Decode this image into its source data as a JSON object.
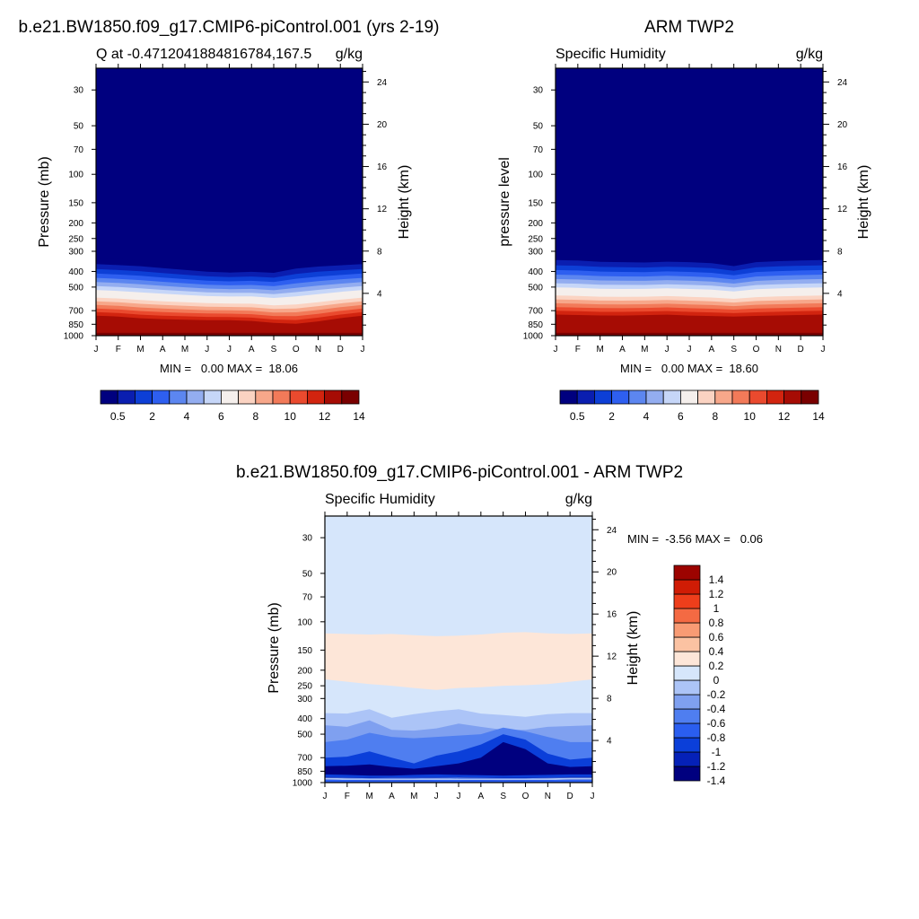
{
  "panels": [
    {
      "title": "b.e21.BW1850.f09_g17.CMIP6-piControl.001 (yrs 2-19)",
      "subtitle_left": "Q at -0.4712041884816784,167.5",
      "subtitle_right": "g/kg",
      "ylabel": "Pressure (mb)",
      "ylabel_right": "Height (km)",
      "minmax": "MIN =   0.00 MAX =  18.06"
    },
    {
      "title": "ARM TWP2",
      "subtitle_left": "Specific Humidity",
      "subtitle_right": "g/kg",
      "ylabel": "pressure level",
      "ylabel_right": "Height (km)",
      "minmax": "MIN =   0.00 MAX =  18.60"
    },
    {
      "title": "b.e21.BW1850.f09_g17.CMIP6-piControl.001 - ARM TWP2",
      "subtitle_left": "Specific Humidity",
      "subtitle_right": "g/kg",
      "ylabel": "Pressure (mb)",
      "ylabel_right": "Height (km)",
      "minmax": "MIN =  -3.56 MAX =   0.06"
    }
  ],
  "colors": {
    "seq_colorbar": [
      "#00007f",
      "#0a1eb0",
      "#0d3fd6",
      "#2e5ff0",
      "#5c86f0",
      "#93adf0",
      "#c6d6f8",
      "#f5efec",
      "#fbd3c2",
      "#f7a78a",
      "#f27a59",
      "#ea4a2e",
      "#d2240f",
      "#a60c04",
      "#7a0000"
    ],
    "diff_colorbar": [
      "#00007f",
      "#0521b8",
      "#0b3fd9",
      "#2a5ef0",
      "#4f7ef0",
      "#7fa0f0",
      "#acc4f7",
      "#d6e6fb",
      "#fde6d8",
      "#fbc2a2",
      "#f89b74",
      "#f46a43",
      "#ee3e1b",
      "#d01c05",
      "#9c0300"
    ]
  },
  "chart_data": [
    {
      "type": "heatmap",
      "title": "b.e21.BW1850.f09_g17.CMIP6-piControl.001 (yrs 2-19)",
      "variable": "Q at -0.4712041884816784,167.5",
      "units": "g/kg",
      "x": [
        "J",
        "F",
        "M",
        "A",
        "M",
        "J",
        "J",
        "A",
        "S",
        "O",
        "N",
        "D",
        "J"
      ],
      "y_pressure_ticks": [
        30,
        50,
        70,
        100,
        150,
        200,
        250,
        300,
        400,
        500,
        700,
        850,
        1000
      ],
      "y_height_ticks_km": [
        4,
        8,
        12,
        16,
        20,
        24
      ],
      "ylabel": "Pressure (mb)",
      "ylabel_right": "Height (km)",
      "min": 0.0,
      "max": 18.06,
      "moist_top_hpa": [
        330,
        335,
        340,
        350,
        360,
        370,
        375,
        370,
        375,
        350,
        340,
        335,
        330
      ],
      "surface_hpa": [
        790,
        800,
        820,
        830,
        835,
        840,
        840,
        850,
        875,
        890,
        860,
        820,
        790
      ],
      "colorbar_levels": [
        0.5,
        1,
        2,
        3,
        4,
        5,
        6,
        7,
        8,
        9,
        10,
        11,
        12,
        13,
        14
      ],
      "colorbar_labels": [
        "0.5",
        "2",
        "4",
        "6",
        "8",
        "10",
        "12",
        "14"
      ]
    },
    {
      "type": "heatmap",
      "title": "ARM TWP2",
      "variable": "Specific Humidity",
      "units": "g/kg",
      "x": [
        "J",
        "F",
        "M",
        "A",
        "M",
        "J",
        "J",
        "A",
        "S",
        "O",
        "N",
        "D",
        "J"
      ],
      "y_pressure_ticks": [
        30,
        50,
        70,
        100,
        150,
        200,
        250,
        300,
        400,
        500,
        700,
        850,
        1000
      ],
      "y_height_ticks_km": [
        4,
        8,
        12,
        16,
        20,
        24
      ],
      "ylabel": "pressure level",
      "ylabel_right": "Height (km)",
      "min": 0.0,
      "max": 18.6,
      "moist_top_hpa": [
        310,
        312,
        318,
        320,
        322,
        318,
        320,
        325,
        340,
        320,
        315,
        312,
        310
      ],
      "surface_hpa": [
        780,
        785,
        790,
        790,
        785,
        780,
        790,
        795,
        800,
        795,
        790,
        785,
        780
      ],
      "colorbar_levels": [
        0.5,
        1,
        2,
        3,
        4,
        5,
        6,
        7,
        8,
        9,
        10,
        11,
        12,
        13,
        14
      ],
      "colorbar_labels": [
        "0.5",
        "2",
        "4",
        "6",
        "8",
        "10",
        "12",
        "14"
      ]
    },
    {
      "type": "heatmap",
      "title": "b.e21.BW1850.f09_g17.CMIP6-piControl.001 - ARM TWP2",
      "variable": "Specific Humidity",
      "units": "g/kg",
      "x": [
        "J",
        "F",
        "M",
        "A",
        "M",
        "J",
        "J",
        "A",
        "S",
        "O",
        "N",
        "D",
        "J"
      ],
      "y_pressure_ticks": [
        30,
        50,
        70,
        100,
        150,
        200,
        250,
        300,
        400,
        500,
        700,
        850,
        1000
      ],
      "y_height_ticks_km": [
        4,
        8,
        12,
        16,
        20,
        24
      ],
      "ylabel": "Pressure (mb)",
      "ylabel_right": "Height (km)",
      "min": -3.56,
      "max": 0.06,
      "colorbar_levels": [
        -1.4,
        -1.2,
        -1,
        -0.8,
        -0.6,
        -0.4,
        -0.2,
        0,
        0.2,
        0.4,
        0.6,
        0.8,
        1,
        1.2,
        1.4
      ],
      "colorbar_labels": [
        "1.4",
        "1.2",
        "1",
        "0.8",
        "0.6",
        "0.4",
        "0.2",
        "0",
        "-0.2",
        "-0.4",
        "-0.6",
        "-0.8",
        "-1",
        "-1.2",
        "-1.4"
      ]
    }
  ]
}
